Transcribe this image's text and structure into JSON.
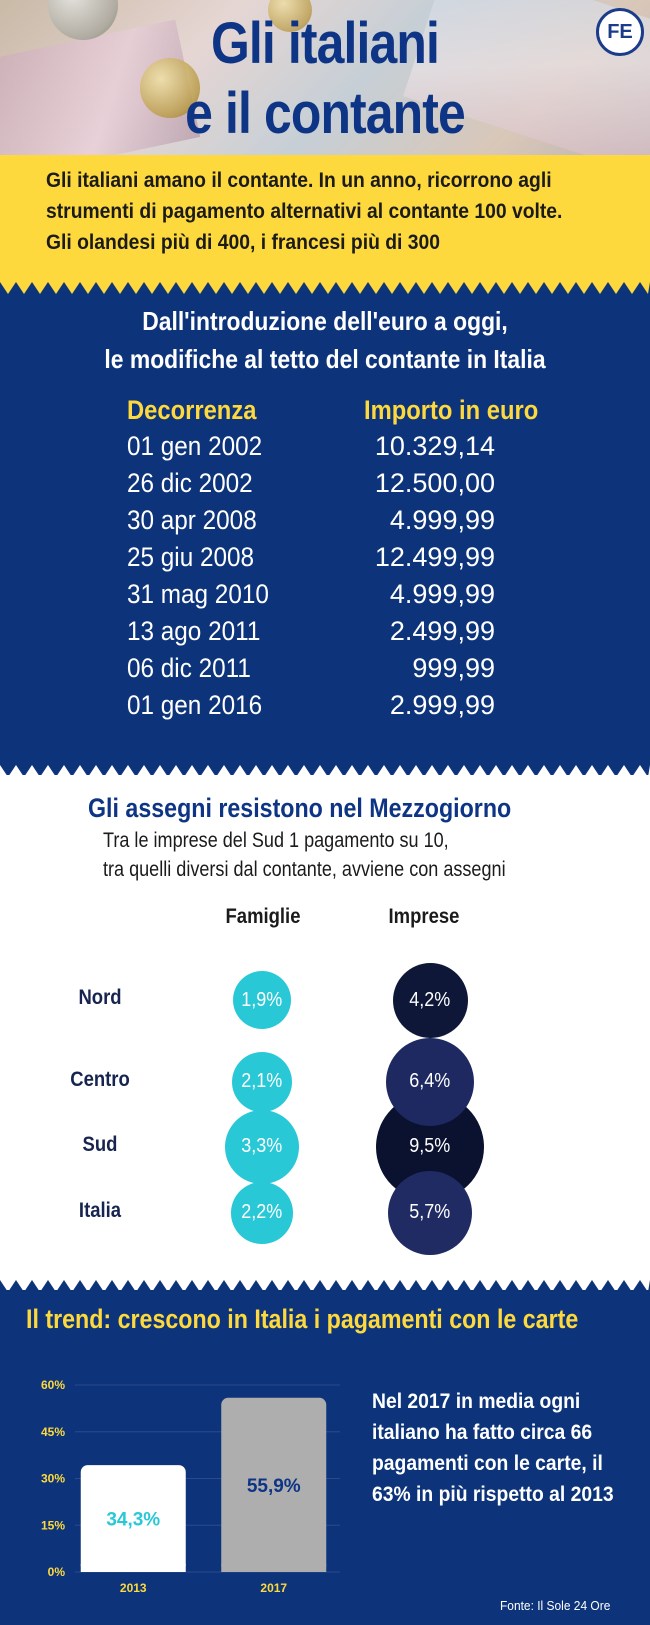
{
  "header": {
    "title_line1": "Gli italiani",
    "title_line2": "e il contante",
    "logo_text": "FE"
  },
  "intro": {
    "text": "Gli italiani amano il contante. In un anno, ricorrono agli strumenti di pagamento alternativi al contante 100 volte. Gli olandesi più di 400, i francesi più di 300"
  },
  "cash_limits": {
    "heading_line1": "Dall'introduzione dell'euro a oggi,",
    "heading_line2": "le modifiche al tetto del contante in Italia",
    "col_date": "Decorrenza",
    "col_amount": "Importo in euro",
    "rows": [
      {
        "date": "01 gen 2002",
        "amount": "10.329,14"
      },
      {
        "date": "26 dic 2002",
        "amount": "12.500,00"
      },
      {
        "date": "30 apr 2008",
        "amount": "4.999,99"
      },
      {
        "date": "25 giu 2008",
        "amount": "12.499,99"
      },
      {
        "date": "31 mag 2010",
        "amount": "4.999,99"
      },
      {
        "date": "13 ago 2011",
        "amount": "2.499,99"
      },
      {
        "date": "06 dic 2011",
        "amount": "999,99"
      },
      {
        "date": "01 gen 2016",
        "amount": "2.999,99"
      }
    ]
  },
  "cheques": {
    "title": "Gli assegni resistono nel Mezzogiorno",
    "subtitle_line1": "Tra le imprese del Sud 1 pagamento su 10,",
    "subtitle_line2": "tra quelli diversi dal contante, avviene con assegni",
    "col_families": "Famiglie",
    "col_companies": "Imprese",
    "family_color": "#29c8d6",
    "company_colors": [
      "#0e1738",
      "#1d2960",
      "#0b1230",
      "#1f2b62"
    ],
    "rows": [
      {
        "region": "Nord",
        "famiglie": "1,9%",
        "imprese": "4,2%"
      },
      {
        "region": "Centro",
        "famiglie": "2,1%",
        "imprese": "6,4%"
      },
      {
        "region": "Sud",
        "famiglie": "3,3%",
        "imprese": "9,5%"
      },
      {
        "region": "Italia",
        "famiglie": "2,2%",
        "imprese": "5,7%"
      }
    ]
  },
  "trend": {
    "heading": "Il trend: crescono in Italia i pagamenti con le carte",
    "text": "Nel 2017 in media ogni italiano ha fatto circa 66 pagamenti con le carte, il 63% in più rispetto al 2013",
    "source": "Fonte: Il Sole 24 Ore"
  },
  "chart_data": {
    "type": "bar",
    "categories": [
      "2013",
      "2017"
    ],
    "values": [
      34.3,
      55.9
    ],
    "value_labels": [
      "34,3%",
      "55,9%"
    ],
    "bar_colors": [
      "#ffffff",
      "#aeaeae"
    ],
    "label_colors": [
      "#29c8d6",
      "#0e3585"
    ],
    "yticks": [
      "0%",
      "15%",
      "30%",
      "45%",
      "60%"
    ],
    "ylim": [
      0,
      60
    ],
    "grid": true,
    "tick_color": "#fed93d"
  }
}
